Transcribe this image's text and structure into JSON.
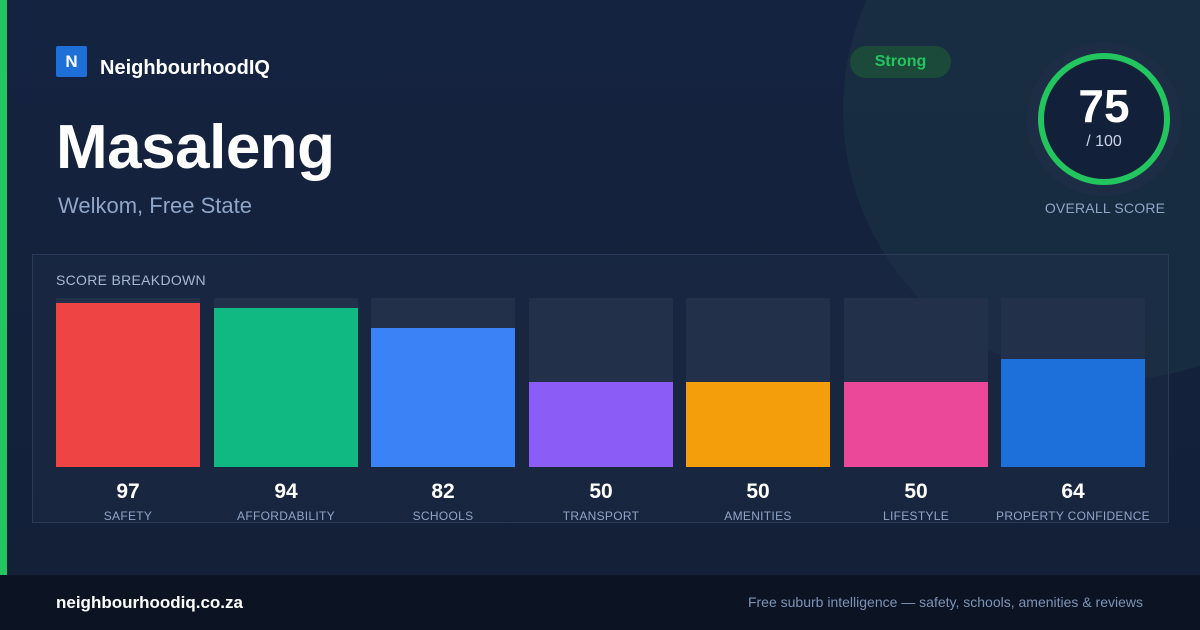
{
  "brand": {
    "logo_letter": "N",
    "name": "NeighbourhoodIQ"
  },
  "suburb": {
    "name": "Masaleng",
    "location": "Welkom, Free State"
  },
  "badge": {
    "label": "Strong",
    "color": "#22c55e"
  },
  "overall": {
    "score": "75",
    "max": "/ 100",
    "label": "OVERALL SCORE",
    "fraction": 0.75,
    "ring_color": "#22c55e"
  },
  "breakdown": {
    "title": "SCORE BREAKDOWN",
    "items": [
      {
        "value": "97",
        "label": "SAFETY",
        "color": "#ef4444"
      },
      {
        "value": "94",
        "label": "AFFORDABILITY",
        "color": "#10b981"
      },
      {
        "value": "82",
        "label": "SCHOOLS",
        "color": "#3b82f6"
      },
      {
        "value": "50",
        "label": "TRANSPORT",
        "color": "#8b5cf6"
      },
      {
        "value": "50",
        "label": "AMENITIES",
        "color": "#f59e0b"
      },
      {
        "value": "50",
        "label": "LIFESTYLE",
        "color": "#ec4899"
      },
      {
        "value": "64",
        "label": "PROPERTY CONFIDENCE",
        "color": "#1d6fd9"
      }
    ]
  },
  "footer": {
    "site": "neighbourhoodiq.co.za",
    "tagline": "Free suburb intelligence — safety, schools, amenities & reviews"
  }
}
